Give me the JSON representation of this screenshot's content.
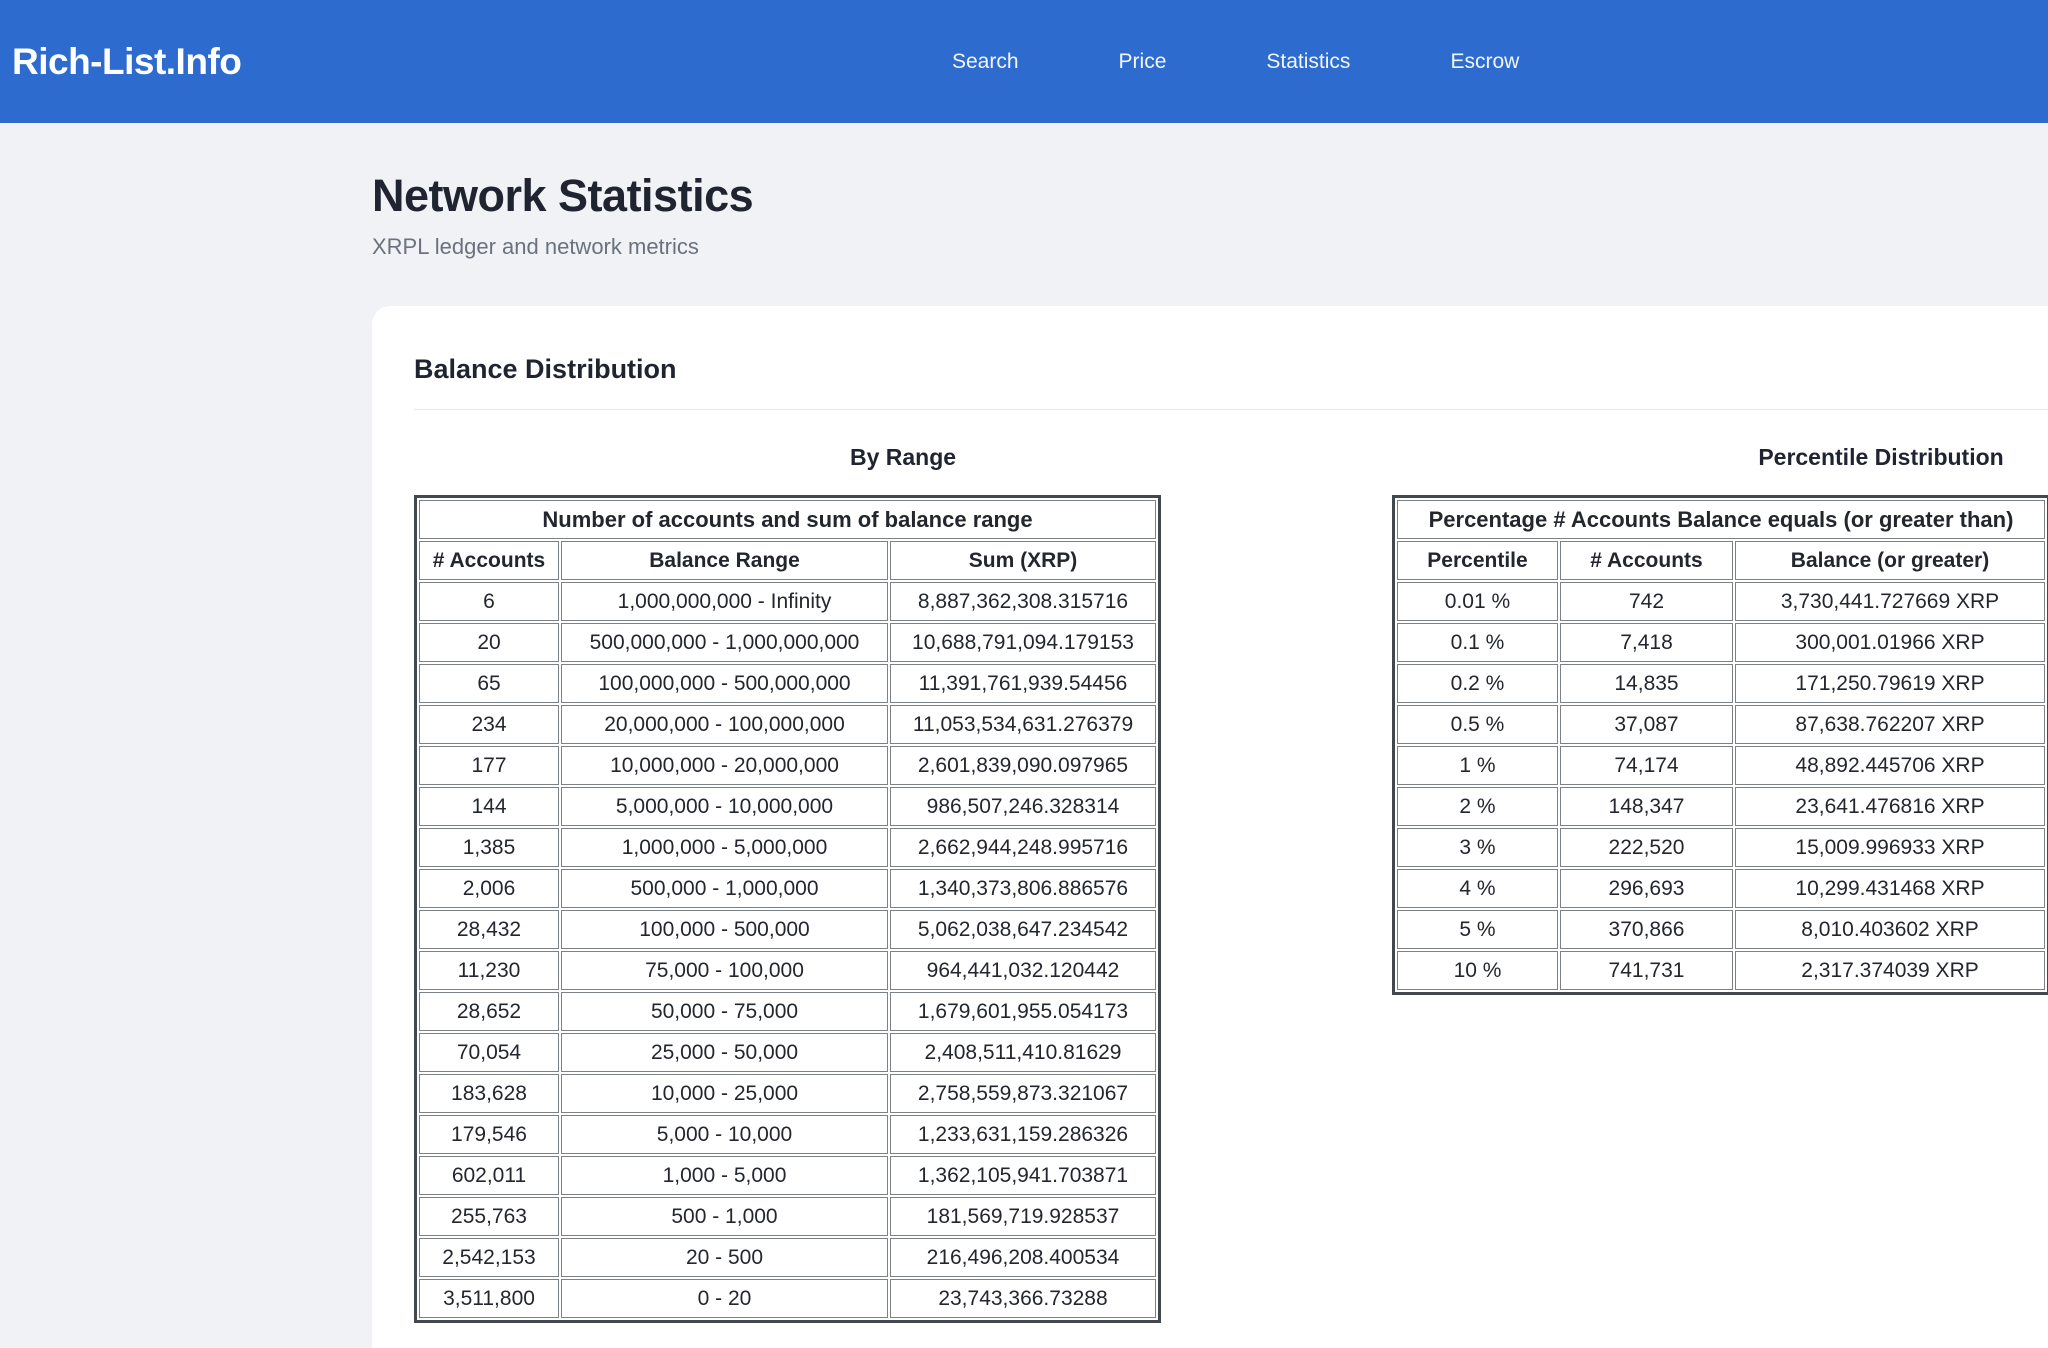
{
  "header": {
    "brand": "Rich-List.Info",
    "nav": [
      "Search",
      "Price",
      "Statistics",
      "Escrow"
    ]
  },
  "page": {
    "title": "Network Statistics",
    "subtitle": "XRPL ledger and network metrics"
  },
  "card": {
    "title": "Balance Distribution",
    "by_range": {
      "section_title": "By Range",
      "caption": "Number of accounts and sum of balance range",
      "columns": [
        "# Accounts",
        "Balance Range",
        "Sum (XRP)"
      ],
      "rows": [
        [
          "6",
          "1,000,000,000 - Infinity",
          "8,887,362,308.315716"
        ],
        [
          "20",
          "500,000,000 - 1,000,000,000",
          "10,688,791,094.179153"
        ],
        [
          "65",
          "100,000,000 - 500,000,000",
          "11,391,761,939.54456"
        ],
        [
          "234",
          "20,000,000 - 100,000,000",
          "11,053,534,631.276379"
        ],
        [
          "177",
          "10,000,000 - 20,000,000",
          "2,601,839,090.097965"
        ],
        [
          "144",
          "5,000,000 - 10,000,000",
          "986,507,246.328314"
        ],
        [
          "1,385",
          "1,000,000 - 5,000,000",
          "2,662,944,248.995716"
        ],
        [
          "2,006",
          "500,000 - 1,000,000",
          "1,340,373,806.886576"
        ],
        [
          "28,432",
          "100,000 - 500,000",
          "5,062,038,647.234542"
        ],
        [
          "11,230",
          "75,000 - 100,000",
          "964,441,032.120442"
        ],
        [
          "28,652",
          "50,000 - 75,000",
          "1,679,601,955.054173"
        ],
        [
          "70,054",
          "25,000 - 50,000",
          "2,408,511,410.81629"
        ],
        [
          "183,628",
          "10,000 - 25,000",
          "2,758,559,873.321067"
        ],
        [
          "179,546",
          "5,000 - 10,000",
          "1,233,631,159.286326"
        ],
        [
          "602,011",
          "1,000 - 5,000",
          "1,362,105,941.703871"
        ],
        [
          "255,763",
          "500 - 1,000",
          "181,569,719.928537"
        ],
        [
          "2,542,153",
          "20 - 500",
          "216,496,208.400534"
        ],
        [
          "3,511,800",
          "0 - 20",
          "23,743,366.73288"
        ]
      ]
    },
    "percentile": {
      "section_title": "Percentile Distribution",
      "caption": "Percentage # Accounts Balance equals (or greater than)",
      "columns": [
        "Percentile",
        "# Accounts",
        "Balance (or greater)"
      ],
      "rows": [
        [
          "0.01 %",
          "742",
          "3,730,441.727669 XRP"
        ],
        [
          "0.1 %",
          "7,418",
          "300,001.01966 XRP"
        ],
        [
          "0.2 %",
          "14,835",
          "171,250.79619 XRP"
        ],
        [
          "0.5 %",
          "37,087",
          "87,638.762207 XRP"
        ],
        [
          "1 %",
          "74,174",
          "48,892.445706 XRP"
        ],
        [
          "2 %",
          "148,347",
          "23,641.476816 XRP"
        ],
        [
          "3 %",
          "222,520",
          "15,009.996933 XRP"
        ],
        [
          "4 %",
          "296,693",
          "10,299.431468 XRP"
        ],
        [
          "5 %",
          "370,866",
          "8,010.403602 XRP"
        ],
        [
          "10 %",
          "741,731",
          "2,317.374039 XRP"
        ]
      ]
    }
  },
  "colors": {
    "header_bg": "#2d6bce",
    "page_bg": "#f0f2f5",
    "card_bg": "#ffffff",
    "table_outer_border": "#43484e",
    "table_cell_border": "#7c8186",
    "text_dark": "#1f2430",
    "text_muted": "#6a7280"
  }
}
